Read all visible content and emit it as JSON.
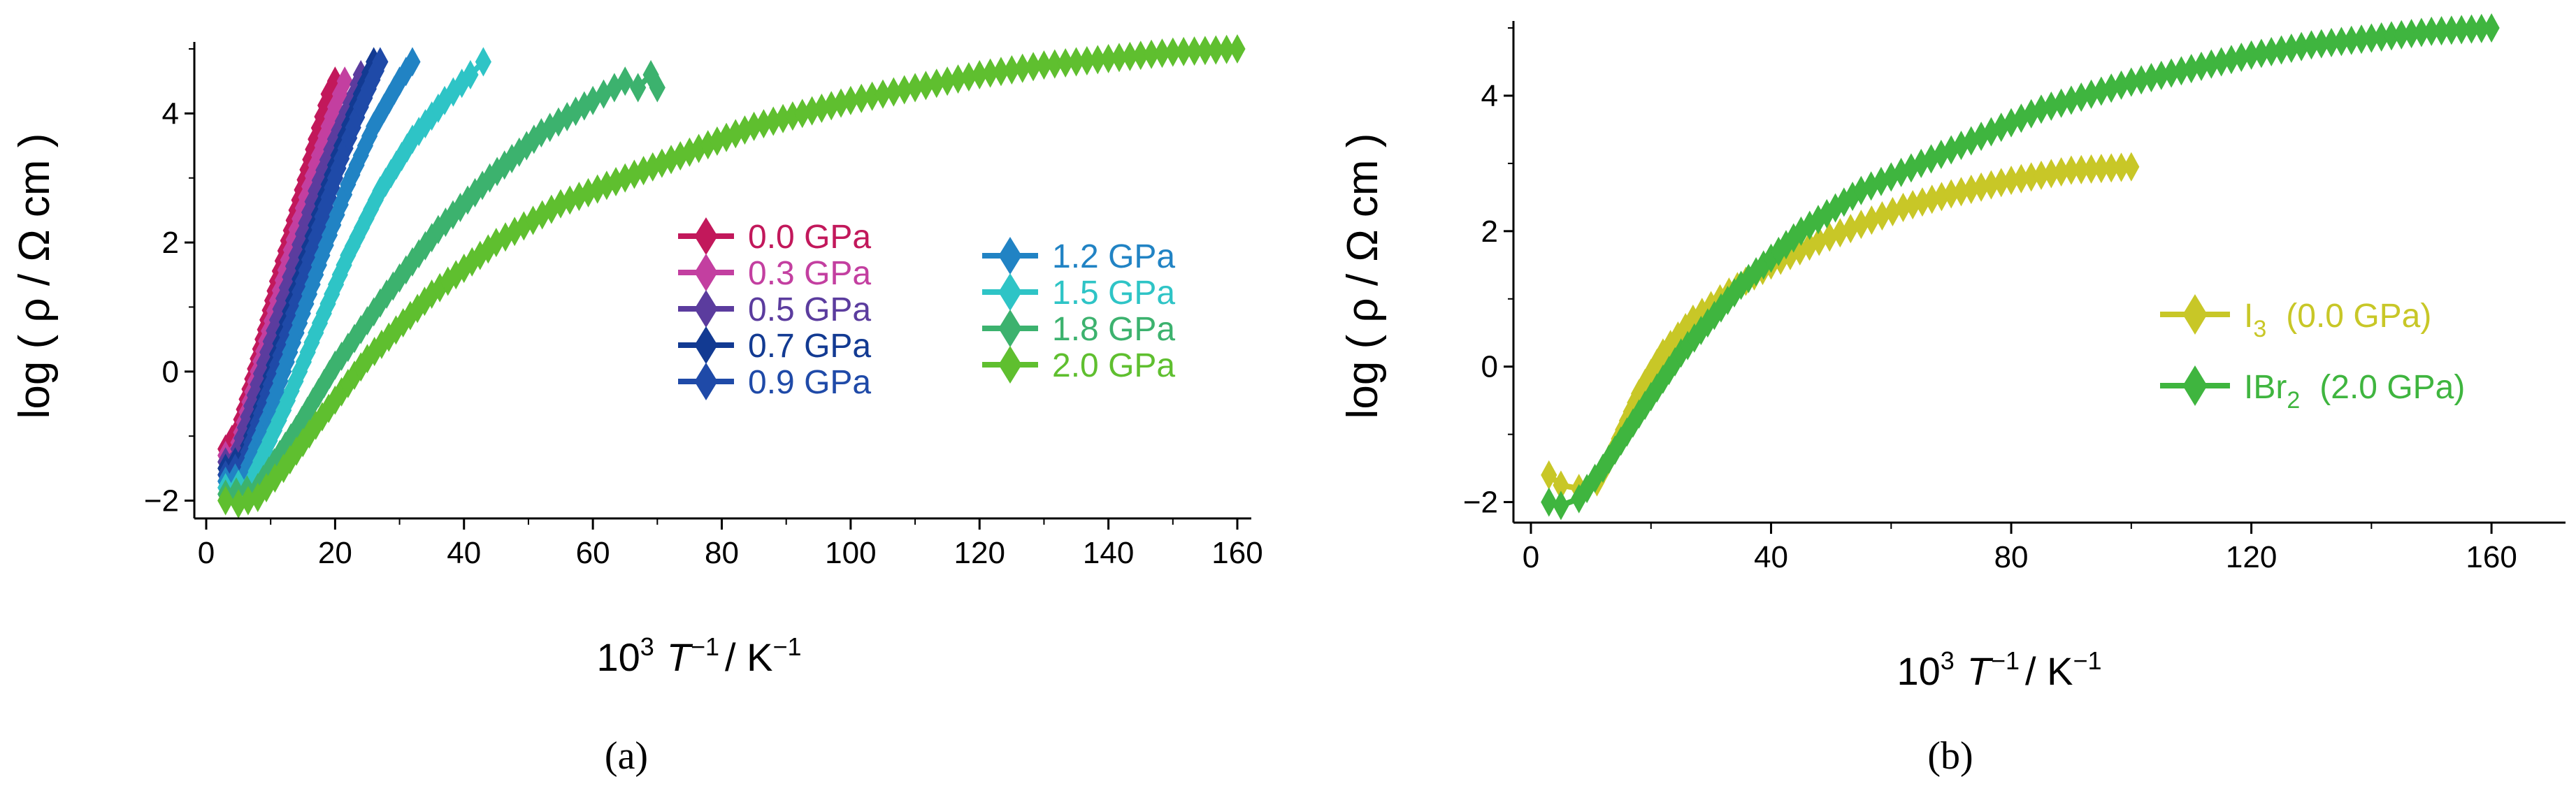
{
  "chart_data": [
    {
      "id": "a",
      "type": "line",
      "panel_label": "(a)",
      "xlabel": {
        "base": "10",
        "sup1": "3",
        "var": "T",
        "sup2": "−1",
        "unit": "/ K",
        "sup3": "−1"
      },
      "ylabel": "log ( ρ / Ω cm )",
      "xlim": [
        0,
        160
      ],
      "ylim": [
        -2.2,
        5
      ],
      "xticks": [
        0,
        20,
        40,
        60,
        80,
        100,
        120,
        140,
        160
      ],
      "yticks": [
        -2,
        0,
        2,
        4
      ],
      "series": [
        {
          "name": "0.0 GPa",
          "color": "#c2185b",
          "points": [
            [
              3,
              -1.2
            ],
            [
              5,
              -0.9
            ],
            [
              8,
              0.2
            ],
            [
              11,
              1.4
            ],
            [
              14,
              2.5
            ],
            [
              17,
              3.6
            ],
            [
              19,
              4.3
            ],
            [
              20,
              4.5
            ]
          ]
        },
        {
          "name": "0.3 GPa",
          "color": "#c33fa0",
          "points": [
            [
              3,
              -1.3
            ],
            [
              5,
              -1.1
            ],
            [
              8,
              0.0
            ],
            [
              11,
              1.1
            ],
            [
              14,
              2.2
            ],
            [
              17,
              3.2
            ],
            [
              20,
              4.1
            ],
            [
              21.5,
              4.5
            ]
          ]
        },
        {
          "name": "0.5 GPa",
          "color": "#5b3c9e",
          "points": [
            [
              3,
              -1.4
            ],
            [
              5,
              -1.2
            ],
            [
              8,
              -0.2
            ],
            [
              11,
              0.8
            ],
            [
              14,
              1.8
            ],
            [
              17,
              2.8
            ],
            [
              20,
              3.6
            ],
            [
              23,
              4.3
            ],
            [
              24,
              4.6
            ]
          ]
        },
        {
          "name": "0.7 GPa",
          "color": "#123a92",
          "points": [
            [
              3,
              -1.5
            ],
            [
              6,
              -1.3
            ],
            [
              9,
              -0.4
            ],
            [
              12,
              0.6
            ],
            [
              15,
              1.6
            ],
            [
              18,
              2.6
            ],
            [
              21,
              3.5
            ],
            [
              24,
              4.3
            ],
            [
              26,
              4.8
            ]
          ]
        },
        {
          "name": "0.9 GPa",
          "color": "#1f4aa8",
          "points": [
            [
              3,
              -1.6
            ],
            [
              6,
              -1.4
            ],
            [
              9,
              -0.5
            ],
            [
              12,
              0.4
            ],
            [
              15,
              1.4
            ],
            [
              18,
              2.4
            ],
            [
              21,
              3.3
            ],
            [
              24,
              4.1
            ],
            [
              27,
              4.8
            ]
          ]
        },
        {
          "name": "1.2 GPa",
          "color": "#2183c4",
          "points": [
            [
              3,
              -1.7
            ],
            [
              6,
              -1.6
            ],
            [
              10,
              -0.6
            ],
            [
              14,
              0.6
            ],
            [
              18,
              1.8
            ],
            [
              22,
              2.9
            ],
            [
              26,
              3.8
            ],
            [
              30,
              4.5
            ],
            [
              32,
              4.8
            ]
          ]
        },
        {
          "name": "1.5 GPa",
          "color": "#2ec4c6",
          "points": [
            [
              3,
              -1.8
            ],
            [
              7,
              -1.7
            ],
            [
              12,
              -0.6
            ],
            [
              17,
              0.6
            ],
            [
              22,
              1.8
            ],
            [
              27,
              2.8
            ],
            [
              32,
              3.6
            ],
            [
              37,
              4.2
            ],
            [
              41,
              4.6
            ],
            [
              43,
              4.8
            ]
          ]
        },
        {
          "name": "1.8 GPa",
          "color": "#3cb26e",
          "points": [
            [
              3,
              -1.9
            ],
            [
              8,
              -1.8
            ],
            [
              14,
              -0.9
            ],
            [
              20,
              0.1
            ],
            [
              28,
              1.2
            ],
            [
              36,
              2.2
            ],
            [
              44,
              3.0
            ],
            [
              52,
              3.7
            ],
            [
              60,
              4.2
            ],
            [
              65,
              4.5
            ],
            [
              67,
              4.4
            ],
            [
              69,
              4.6
            ],
            [
              70,
              4.4
            ]
          ]
        },
        {
          "name": "2.0 GPa",
          "color": "#5fbf2f",
          "points": [
            [
              3,
              -2.0
            ],
            [
              5,
              -2.05
            ],
            [
              8,
              -1.95
            ],
            [
              12,
              -1.5
            ],
            [
              18,
              -0.7
            ],
            [
              25,
              0.2
            ],
            [
              35,
              1.2
            ],
            [
              45,
              2.0
            ],
            [
              55,
              2.6
            ],
            [
              65,
              3.0
            ],
            [
              75,
              3.4
            ],
            [
              85,
              3.8
            ],
            [
              100,
              4.2
            ],
            [
              110,
              4.4
            ],
            [
              120,
              4.6
            ],
            [
              130,
              4.75
            ],
            [
              140,
              4.85
            ],
            [
              150,
              4.95
            ],
            [
              160,
              5.0
            ]
          ]
        }
      ],
      "legend_left": [
        {
          "label": "0.0 GPa",
          "color": "#c2185b"
        },
        {
          "label": "0.3 GPa",
          "color": "#c33fa0"
        },
        {
          "label": "0.5 GPa",
          "color": "#5b3c9e"
        },
        {
          "label": "0.7 GPa",
          "color": "#123a92"
        },
        {
          "label": "0.9 GPa",
          "color": "#1f4aa8"
        }
      ],
      "legend_right": [
        {
          "label": "1.2 GPa",
          "color": "#2183c4"
        },
        {
          "label": "1.5 GPa",
          "color": "#2ec4c6"
        },
        {
          "label": "1.8 GPa",
          "color": "#3cb26e"
        },
        {
          "label": "2.0 GPa",
          "color": "#5fbf2f"
        }
      ]
    },
    {
      "id": "b",
      "type": "line",
      "panel_label": "(b)",
      "xlabel": {
        "base": "10",
        "sup1": "3",
        "var": "T",
        "sup2": "−1",
        "unit": "/ K",
        "sup3": "−1"
      },
      "ylabel": "log ( ρ / Ω cm )",
      "xlim": [
        0,
        170
      ],
      "ylim": [
        -2.2,
        5
      ],
      "xticks": [
        0,
        40,
        80,
        120,
        160
      ],
      "yticks": [
        -2,
        0,
        2,
        4
      ],
      "series": [
        {
          "name": "I3 (0.0 GPa)",
          "color": "#c8c727",
          "points": [
            [
              3,
              -1.6
            ],
            [
              5,
              -1.75
            ],
            [
              8,
              -1.8
            ],
            [
              11,
              -1.7
            ],
            [
              14,
              -1.2
            ],
            [
              18,
              -0.4
            ],
            [
              22,
              0.2
            ],
            [
              27,
              0.7
            ],
            [
              33,
              1.1
            ],
            [
              40,
              1.5
            ],
            [
              48,
              1.85
            ],
            [
              55,
              2.1
            ],
            [
              62,
              2.35
            ],
            [
              70,
              2.55
            ],
            [
              80,
              2.75
            ],
            [
              90,
              2.9
            ],
            [
              100,
              2.95
            ]
          ]
        },
        {
          "name": "IBr2 (2.0 GPa)",
          "color": "#3fb53f",
          "points": [
            [
              3,
              -2.0
            ],
            [
              5,
              -2.05
            ],
            [
              8,
              -1.95
            ],
            [
              12,
              -1.5
            ],
            [
              18,
              -0.7
            ],
            [
              25,
              0.2
            ],
            [
              35,
              1.2
            ],
            [
              45,
              2.0
            ],
            [
              55,
              2.6
            ],
            [
              65,
              3.0
            ],
            [
              75,
              3.4
            ],
            [
              85,
              3.8
            ],
            [
              100,
              4.2
            ],
            [
              110,
              4.4
            ],
            [
              120,
              4.6
            ],
            [
              130,
              4.75
            ],
            [
              140,
              4.85
            ],
            [
              150,
              4.95
            ],
            [
              160,
              5.0
            ]
          ]
        }
      ],
      "legend": [
        {
          "main": "I",
          "sub": "3",
          "pressure": "(0.0 GPa)",
          "color": "#c8c727"
        },
        {
          "main": "IBr",
          "sub": "2",
          "pressure": "(2.0 GPa)",
          "color": "#3fb53f"
        }
      ]
    }
  ]
}
